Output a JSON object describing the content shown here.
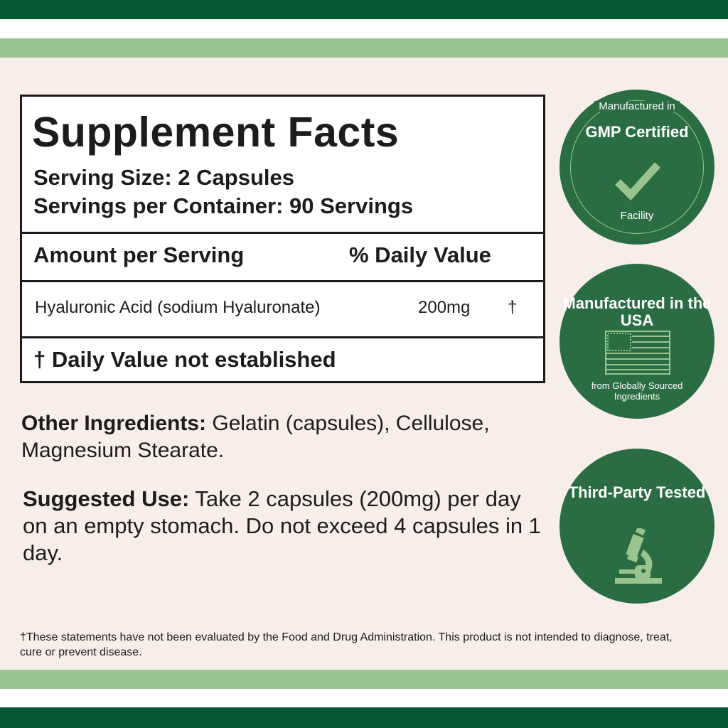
{
  "colors": {
    "dark_green": "#045532",
    "light_green": "#99c48f",
    "badge_green": "#2b6d43",
    "background": "#f7ede9"
  },
  "facts": {
    "title": "Supplement Facts",
    "serving_size": "Serving Size: 2 Capsules",
    "servings_per_container": "Servings per Container: 90 Servings",
    "amount_header": "Amount per Serving",
    "dv_header": "% Daily Value",
    "ingredient": {
      "name": "Hyaluronic Acid (sodium Hyaluronate)",
      "amount": "200mg",
      "dv": "†"
    },
    "footnote": "† Daily Value not established"
  },
  "other_ingredients": {
    "label": "Other Ingredients:",
    "text": " Gelatin (capsules), Cellulose, Magnesium Stearate."
  },
  "suggested_use": {
    "label": "Suggested Use:",
    "text": " Take 2 capsules (200mg) per day on an empty stomach. Do not exceed 4 capsules in 1 day."
  },
  "disclaimer": "†These statements have not been evaluated by the Food and Drug Administration. This product is not intended to diagnose, treat, cure or prevent disease.",
  "badges": [
    {
      "top": "Manufactured in",
      "title": "GMP Certified",
      "bottom": "Facility",
      "icon": "checkmark-icon"
    },
    {
      "title": "Manufactured in the USA",
      "subtitle": "from Globally Sourced Ingredients",
      "icon": "us-flag-icon"
    },
    {
      "title": "Third-Party Tested",
      "icon": "microscope-icon"
    }
  ]
}
